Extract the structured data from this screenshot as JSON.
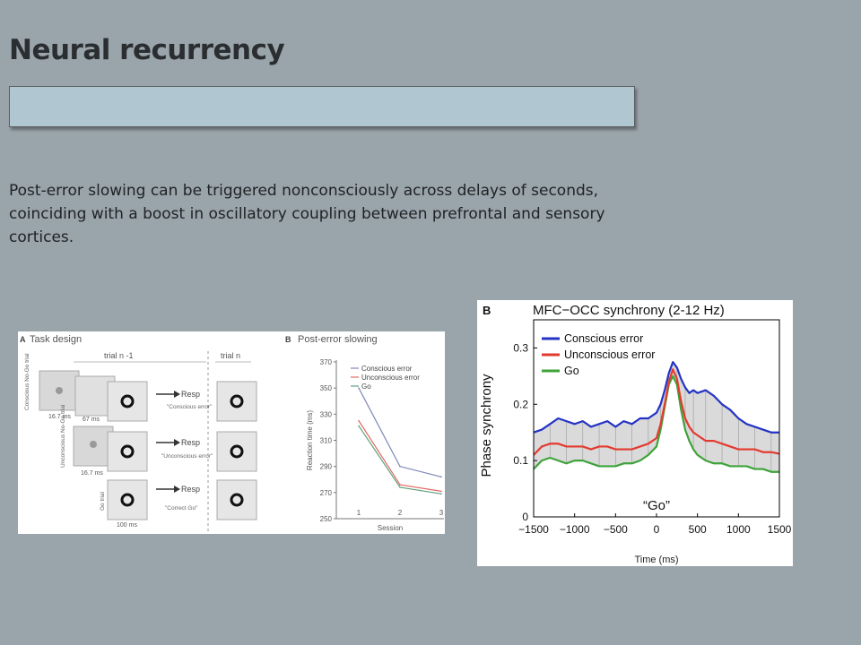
{
  "slide": {
    "title": "Neural recurrency",
    "body": "Post-error slowing can be triggered nonconsciously across delays of seconds, coinciding with a boost in oscillatory coupling between prefrontal and sensory cortices."
  },
  "figure_a": {
    "panel_a_label": "A",
    "panel_a_title": "Task design",
    "trial_prev_label": "trial n -1",
    "trial_cur_label": "trial n",
    "rows": [
      {
        "side_label": "Conscious No-Go trial",
        "t1": "16.7 ms",
        "t2": "67 ms",
        "resp": "Resp",
        "quote": "\"Conscious error\""
      },
      {
        "side_label": "Unconscious No-Go trial",
        "t1": "16.7 ms",
        "resp": "Resp",
        "quote": "\"Unconscious error\""
      },
      {
        "side_label": "Go trial",
        "t1": "100 ms",
        "resp": "Resp",
        "quote": "\"Correct Go\""
      }
    ],
    "colors": {
      "conscious": "#7f86b8",
      "unconscious": "#e26a62",
      "go": "#5fa07f"
    }
  },
  "chart_data": [
    {
      "type": "line",
      "panel": "B",
      "title": "Post-error slowing",
      "xlabel": "Session",
      "ylabel": "Reaction time (ms)",
      "x": [
        1,
        2,
        3
      ],
      "xlim": [
        1,
        3
      ],
      "ylim": [
        250,
        370
      ],
      "yticks": [
        250,
        270,
        290,
        310,
        330,
        350,
        370
      ],
      "legend_position": "top-right",
      "series": [
        {
          "name": "Conscious error",
          "values": [
            350,
            290,
            282
          ],
          "color": "#7f86b8"
        },
        {
          "name": "Unconscious error",
          "values": [
            325,
            276,
            271
          ],
          "color": "#e26a62"
        },
        {
          "name": "Go",
          "values": [
            321,
            274,
            269
          ],
          "color": "#5fa07f"
        }
      ]
    },
    {
      "type": "line",
      "panel": "B",
      "title": "MFC−OCC synchrony (2-12 Hz)",
      "xlabel": "Time (ms)",
      "ylabel": "Phase synchrony",
      "annotation": "“Go”",
      "xlim": [
        -1500,
        1500
      ],
      "ylim": [
        0,
        0.35
      ],
      "xticks": [
        -1500,
        -1000,
        -500,
        0,
        500,
        1000,
        1500
      ],
      "xtick_labels": [
        "−1500",
        "−1000",
        "−500",
        "0",
        "500",
        "1000",
        "1500"
      ],
      "yticks": [
        0,
        0.1,
        0.2,
        0.3
      ],
      "ytick_labels": [
        "0",
        "0.1",
        "0.2",
        "0.3"
      ],
      "legend_position": "top-left",
      "x": [
        -1500,
        -1400,
        -1300,
        -1200,
        -1100,
        -1000,
        -900,
        -800,
        -700,
        -600,
        -500,
        -400,
        -300,
        -200,
        -100,
        0,
        50,
        100,
        150,
        200,
        250,
        300,
        350,
        400,
        450,
        500,
        600,
        700,
        800,
        900,
        1000,
        1100,
        1200,
        1300,
        1400,
        1500
      ],
      "series": [
        {
          "name": "Conscious error",
          "color": "#2433c4",
          "values": [
            0.15,
            0.155,
            0.165,
            0.175,
            0.17,
            0.165,
            0.17,
            0.16,
            0.165,
            0.17,
            0.16,
            0.17,
            0.165,
            0.175,
            0.175,
            0.185,
            0.2,
            0.225,
            0.255,
            0.275,
            0.265,
            0.245,
            0.23,
            0.22,
            0.225,
            0.22,
            0.225,
            0.215,
            0.2,
            0.19,
            0.175,
            0.165,
            0.16,
            0.155,
            0.15,
            0.15
          ]
        },
        {
          "name": "Unconscious error",
          "color": "#e33a2f",
          "values": [
            0.11,
            0.125,
            0.13,
            0.13,
            0.125,
            0.125,
            0.125,
            0.12,
            0.125,
            0.125,
            0.12,
            0.12,
            0.12,
            0.125,
            0.13,
            0.14,
            0.165,
            0.2,
            0.24,
            0.262,
            0.245,
            0.205,
            0.175,
            0.16,
            0.15,
            0.145,
            0.135,
            0.135,
            0.13,
            0.125,
            0.12,
            0.12,
            0.12,
            0.115,
            0.115,
            0.112
          ]
        },
        {
          "name": "Go",
          "color": "#3fa33a",
          "values": [
            0.085,
            0.1,
            0.105,
            0.1,
            0.095,
            0.1,
            0.1,
            0.095,
            0.09,
            0.09,
            0.09,
            0.095,
            0.095,
            0.1,
            0.11,
            0.125,
            0.155,
            0.195,
            0.235,
            0.25,
            0.235,
            0.19,
            0.155,
            0.135,
            0.12,
            0.11,
            0.1,
            0.095,
            0.095,
            0.09,
            0.09,
            0.09,
            0.085,
            0.085,
            0.08,
            0.08
          ]
        }
      ]
    }
  ]
}
